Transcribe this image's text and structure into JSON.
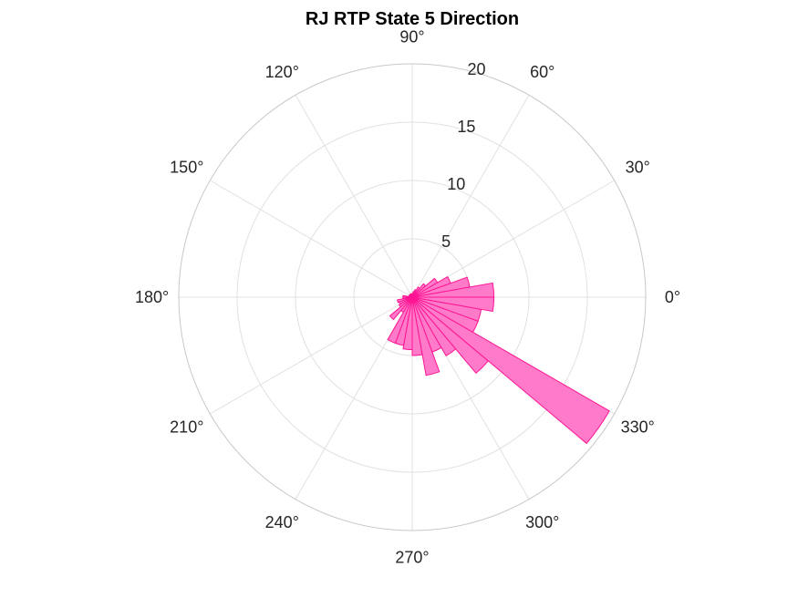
{
  "chart_data": {
    "type": "polar-histogram",
    "title": "RJ  RTP State 5 Direction",
    "rlim": [
      0,
      20
    ],
    "r_ticks": [
      5,
      10,
      15,
      20
    ],
    "theta_ticks": [
      0,
      30,
      60,
      90,
      120,
      150,
      180,
      210,
      240,
      270,
      300,
      330
    ],
    "theta_tick_labels": [
      "0°",
      "30°",
      "60°",
      "90°",
      "120°",
      "150°",
      "180°",
      "210°",
      "240°",
      "270°",
      "300°",
      "330°"
    ],
    "bin_width_deg": 10,
    "bins": [
      {
        "start": 0,
        "end": 10,
        "count": 7.0
      },
      {
        "start": 10,
        "end": 20,
        "count": 5.0
      },
      {
        "start": 20,
        "end": 30,
        "count": 3.5
      },
      {
        "start": 30,
        "end": 40,
        "count": 2.5
      },
      {
        "start": 40,
        "end": 50,
        "count": 1.5
      },
      {
        "start": 50,
        "end": 60,
        "count": 1.0
      },
      {
        "start": 60,
        "end": 70,
        "count": 0.7
      },
      {
        "start": 70,
        "end": 80,
        "count": 0.5
      },
      {
        "start": 80,
        "end": 90,
        "count": 0.3
      },
      {
        "start": 90,
        "end": 100,
        "count": 0.3
      },
      {
        "start": 100,
        "end": 110,
        "count": 0.3
      },
      {
        "start": 110,
        "end": 120,
        "count": 0.3
      },
      {
        "start": 120,
        "end": 130,
        "count": 0.3
      },
      {
        "start": 130,
        "end": 140,
        "count": 0.3
      },
      {
        "start": 140,
        "end": 150,
        "count": 0.3
      },
      {
        "start": 150,
        "end": 160,
        "count": 0.3
      },
      {
        "start": 160,
        "end": 170,
        "count": 0.3
      },
      {
        "start": 170,
        "end": 180,
        "count": 0.8
      },
      {
        "start": 180,
        "end": 190,
        "count": 0.8
      },
      {
        "start": 190,
        "end": 200,
        "count": 1.3
      },
      {
        "start": 200,
        "end": 210,
        "count": 1.2
      },
      {
        "start": 210,
        "end": 220,
        "count": 1.3
      },
      {
        "start": 220,
        "end": 230,
        "count": 2.5
      },
      {
        "start": 230,
        "end": 240,
        "count": 1.5
      },
      {
        "start": 240,
        "end": 250,
        "count": 4.2
      },
      {
        "start": 250,
        "end": 260,
        "count": 4.2
      },
      {
        "start": 260,
        "end": 270,
        "count": 4.5
      },
      {
        "start": 270,
        "end": 280,
        "count": 5.0
      },
      {
        "start": 280,
        "end": 290,
        "count": 6.8
      },
      {
        "start": 290,
        "end": 300,
        "count": 5.0
      },
      {
        "start": 300,
        "end": 310,
        "count": 5.8
      },
      {
        "start": 310,
        "end": 320,
        "count": 8.5
      },
      {
        "start": 320,
        "end": 330,
        "count": 19.5
      },
      {
        "start": 330,
        "end": 340,
        "count": 6.0
      },
      {
        "start": 340,
        "end": 350,
        "count": 6.0
      },
      {
        "start": 350,
        "end": 360,
        "count": 7.0
      }
    ],
    "bar_fill": "#ff7ac8",
    "bar_edge": "#ff1493",
    "grid": true,
    "legend": "none"
  }
}
